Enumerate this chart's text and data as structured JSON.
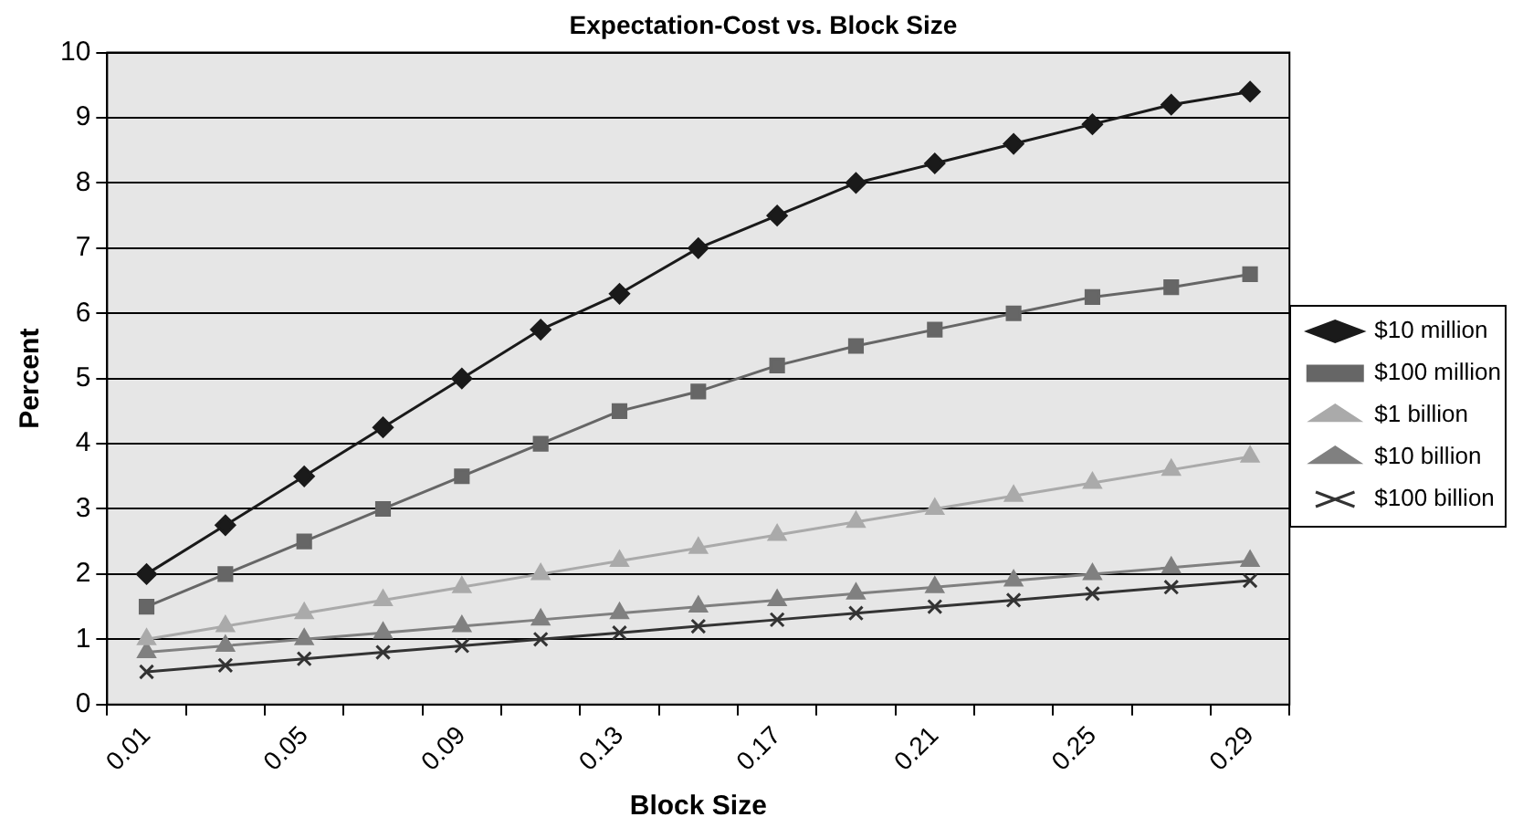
{
  "chart_data": {
    "type": "line",
    "title": "Expectation-Cost vs. Block Size",
    "xlabel": "Block Size",
    "ylabel": "Percent",
    "categories": [
      "0.01",
      null,
      "0.05",
      null,
      "0.09",
      null,
      "0.13",
      null,
      "0.17",
      null,
      "0.21",
      null,
      "0.25",
      null,
      "0.29"
    ],
    "ylim": [
      0,
      10
    ],
    "yticks": [
      0,
      1,
      2,
      3,
      4,
      5,
      6,
      7,
      8,
      9,
      10
    ],
    "grid": "y",
    "legend": "right",
    "series": [
      {
        "name": "$10 million",
        "color": "#1a1a1a",
        "marker": "diamond",
        "values": [
          2,
          2.75,
          3.5,
          4.25,
          5,
          5.75,
          6.3,
          7,
          7.5,
          8,
          8.3,
          8.6,
          8.9,
          9.2,
          9.4
        ]
      },
      {
        "name": "$100 million",
        "color": "#666666",
        "marker": "square",
        "values": [
          1.5,
          2,
          2.5,
          3,
          3.5,
          4,
          4.5,
          4.8,
          5.2,
          5.5,
          5.75,
          6,
          6.25,
          6.4,
          6.6
        ]
      },
      {
        "name": "$1 billion",
        "color": "#aaaaaa",
        "marker": "triangle",
        "values": [
          1,
          1.2,
          1.4,
          1.6,
          1.8,
          2,
          2.2,
          2.4,
          2.6,
          2.8,
          3,
          3.2,
          3.4,
          3.6,
          3.8
        ]
      },
      {
        "name": "$10 billion",
        "color": "#808080",
        "marker": "triangle",
        "values": [
          0.8,
          0.9,
          1,
          1.1,
          1.2,
          1.3,
          1.4,
          1.5,
          1.6,
          1.7,
          1.8,
          1.9,
          2,
          2.1,
          2.2
        ]
      },
      {
        "name": "$100 billion",
        "color": "#333333",
        "marker": "cross",
        "values": [
          0.5,
          0.6,
          0.7,
          0.8,
          0.9,
          1,
          1.1,
          1.2,
          1.3,
          1.4,
          1.5,
          1.6,
          1.7,
          1.8,
          1.9
        ]
      }
    ]
  }
}
